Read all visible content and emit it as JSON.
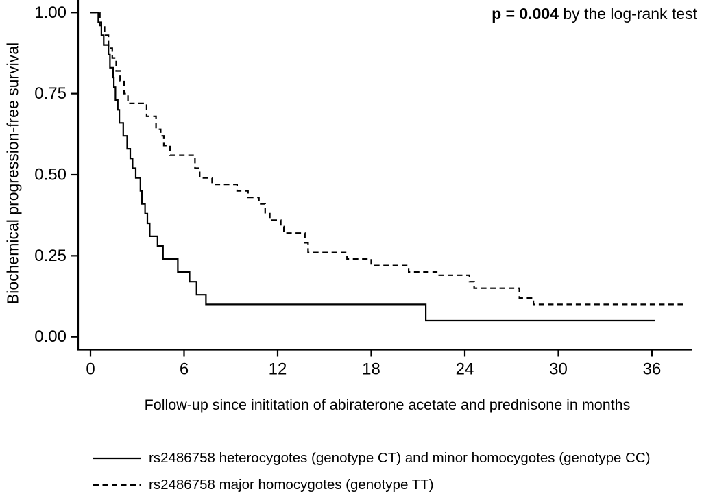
{
  "figure": {
    "p_value_bold": "p = 0.004",
    "p_value_rest": " by the log-rank test"
  },
  "chart_data": {
    "type": "line",
    "variant": "kaplan_meier_step_curves",
    "title": "",
    "xlabel": "Follow-up since inititation of abiraterone acetate and prednisone in months",
    "ylabel": "Biochemical progression-free survival",
    "annotation": "p = 0.004 by the log-rank test",
    "xlim": [
      0,
      38.5
    ],
    "ylim": [
      0,
      1
    ],
    "x_ticks": [
      0,
      6,
      12,
      18,
      24,
      30,
      36
    ],
    "y_ticks": [
      0,
      0.25,
      0.5,
      0.75,
      1
    ],
    "y_tick_labels": [
      "0.00",
      "0.25",
      "0.50",
      "0.75",
      "1.00"
    ],
    "grid": false,
    "legend_position": "bottom-left",
    "series": [
      {
        "name": "rs2486758 heterocygotes (genotype CT) and minor homocygotes (genotype CC)",
        "line_style": "solid",
        "color": "#000000",
        "start": [
          0,
          1.0
        ],
        "steps": [
          [
            0.5,
            0.97
          ],
          [
            0.7,
            0.93
          ],
          [
            0.85,
            0.9
          ],
          [
            1.15,
            0.87
          ],
          [
            1.25,
            0.83
          ],
          [
            1.45,
            0.8
          ],
          [
            1.5,
            0.77
          ],
          [
            1.6,
            0.73
          ],
          [
            1.75,
            0.7
          ],
          [
            1.85,
            0.66
          ],
          [
            2.1,
            0.62
          ],
          [
            2.35,
            0.58
          ],
          [
            2.55,
            0.55
          ],
          [
            2.7,
            0.52
          ],
          [
            2.9,
            0.49
          ],
          [
            3.2,
            0.45
          ],
          [
            3.3,
            0.41
          ],
          [
            3.5,
            0.38
          ],
          [
            3.65,
            0.35
          ],
          [
            3.8,
            0.31
          ],
          [
            4.3,
            0.28
          ],
          [
            4.65,
            0.24
          ],
          [
            5.6,
            0.2
          ],
          [
            6.35,
            0.17
          ],
          [
            6.8,
            0.13
          ],
          [
            7.4,
            0.1
          ],
          [
            21.5,
            0.05
          ]
        ],
        "end_time": 36.2
      },
      {
        "name": "rs2486758 major homocygotes (genotype TT)",
        "line_style": "dashed",
        "color": "#000000",
        "start": [
          0,
          1.0
        ],
        "steps": [
          [
            0.6,
            0.96
          ],
          [
            0.9,
            0.93
          ],
          [
            1.15,
            0.89
          ],
          [
            1.4,
            0.86
          ],
          [
            1.65,
            0.82
          ],
          [
            1.9,
            0.79
          ],
          [
            2.15,
            0.75
          ],
          [
            2.4,
            0.72
          ],
          [
            3.6,
            0.68
          ],
          [
            4.2,
            0.64
          ],
          [
            4.5,
            0.62
          ],
          [
            4.7,
            0.59
          ],
          [
            5.1,
            0.56
          ],
          [
            6.7,
            0.52
          ],
          [
            7.0,
            0.49
          ],
          [
            7.8,
            0.47
          ],
          [
            9.4,
            0.45
          ],
          [
            10.1,
            0.43
          ],
          [
            10.8,
            0.41
          ],
          [
            11.2,
            0.38
          ],
          [
            11.5,
            0.36
          ],
          [
            12.2,
            0.34
          ],
          [
            12.4,
            0.32
          ],
          [
            13.75,
            0.29
          ],
          [
            13.95,
            0.26
          ],
          [
            16.45,
            0.24
          ],
          [
            18.0,
            0.22
          ],
          [
            20.4,
            0.2
          ],
          [
            22.2,
            0.19
          ],
          [
            24.3,
            0.17
          ],
          [
            24.6,
            0.15
          ],
          [
            27.5,
            0.12
          ],
          [
            28.4,
            0.1
          ]
        ],
        "end_time": 38.0
      }
    ]
  }
}
